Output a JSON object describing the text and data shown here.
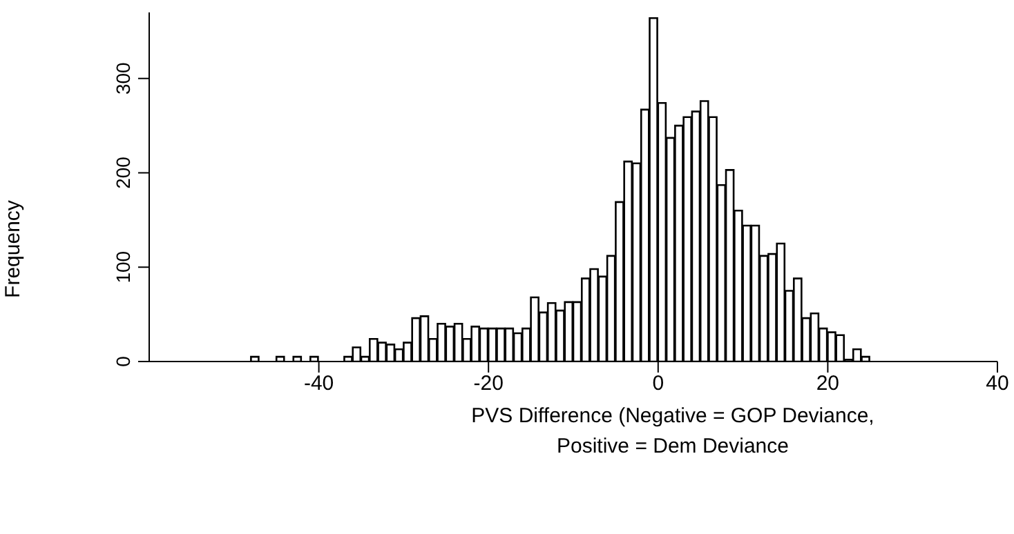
{
  "chart_data": {
    "type": "histogram",
    "xlabel": "PVS Difference (Negative = GOP Deviance,\nPositive = Dem Deviance",
    "ylabel": "Frequency",
    "bins": [
      -48,
      -47,
      -46,
      -45,
      -44,
      -43,
      -42,
      -41,
      -40,
      -39,
      -38,
      -37,
      -36,
      -35,
      -34,
      -33,
      -32,
      -31,
      -30,
      -29,
      -28,
      -27,
      -26,
      -25,
      -24,
      -23,
      -22,
      -21,
      -20,
      -19,
      -18,
      -17,
      -16,
      -15,
      -14,
      -13,
      -12,
      -11,
      -10,
      -9,
      -8,
      -7,
      -6,
      -5,
      -4,
      -3,
      -2,
      -1,
      0,
      1,
      2,
      3,
      4,
      5,
      6,
      7,
      8,
      9,
      10,
      11,
      12,
      13,
      14,
      15,
      16,
      17,
      18,
      19,
      20,
      21,
      22,
      23,
      24,
      25
    ],
    "values": [
      5,
      0,
      0,
      5,
      0,
      5,
      0,
      5,
      0,
      0,
      0,
      5,
      15,
      5,
      24,
      20,
      18,
      13,
      20,
      46,
      48,
      24,
      40,
      37,
      40,
      24,
      37,
      35,
      35,
      35,
      35,
      30,
      35,
      68,
      52,
      62,
      54,
      63,
      63,
      88,
      98,
      90,
      112,
      169,
      212,
      210,
      267,
      364,
      274,
      237,
      250,
      259,
      265,
      276,
      259,
      187,
      203,
      160,
      144,
      144,
      112,
      114,
      125,
      75,
      88,
      46,
      51,
      35,
      31,
      28,
      2,
      13,
      5
    ],
    "color": "#ffffff",
    "xlim": [
      -60,
      40
    ],
    "xticks": [
      -40,
      -20,
      0,
      20,
      40
    ],
    "ylim": [
      0,
      370
    ],
    "yticks": [
      0,
      100,
      200,
      300
    ]
  }
}
